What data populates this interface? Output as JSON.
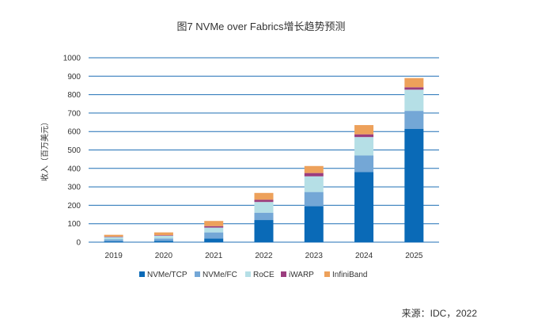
{
  "chart_data": {
    "type": "bar",
    "stacked": true,
    "title": "图7 NVMe over Fabrics增长趋势预测",
    "ylabel": "收入（百万美元）",
    "xlabel": "",
    "categories": [
      "2019",
      "2020",
      "2021",
      "2022",
      "2023",
      "2024",
      "2025"
    ],
    "ylim": [
      0,
      1000
    ],
    "yticks": [
      0,
      100,
      200,
      300,
      400,
      500,
      600,
      700,
      800,
      900,
      1000
    ],
    "grid": true,
    "legend_position": "bottom",
    "series": [
      {
        "name": "NVMe/TCP",
        "color": "#0a6ab7",
        "values": [
          5,
          7,
          20,
          120,
          195,
          380,
          615
        ]
      },
      {
        "name": "NVMe/FC",
        "color": "#74a7d6",
        "values": [
          10,
          13,
          33,
          40,
          77,
          90,
          97
        ]
      },
      {
        "name": "RoCE",
        "color": "#b5dfe6",
        "values": [
          13,
          15,
          26,
          58,
          85,
          100,
          115
        ]
      },
      {
        "name": "iWARP",
        "color": "#9b3d7e",
        "values": [
          2,
          3,
          8,
          12,
          18,
          15,
          13
        ]
      },
      {
        "name": "InfiniBand",
        "color": "#eda15b",
        "values": [
          10,
          15,
          28,
          37,
          38,
          50,
          50
        ]
      }
    ],
    "source": "来源：IDC，2022"
  }
}
